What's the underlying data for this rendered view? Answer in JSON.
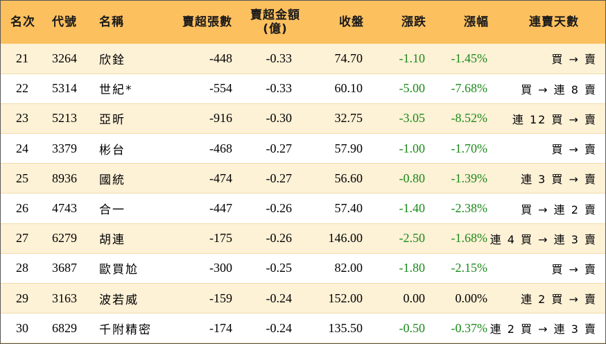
{
  "headers": {
    "rank": "名次",
    "code": "代號",
    "name": "名稱",
    "sell_lots": "賣超張數",
    "sell_amount_line1": "賣超金額",
    "sell_amount_line2": "(億)",
    "close": "收盤",
    "change": "漲跌",
    "change_pct": "漲幅",
    "streak": "連賣天數"
  },
  "rows": [
    {
      "rank": "21",
      "code": "3264",
      "name": "欣銓",
      "sell_lots": "-448",
      "sell_amount": "-0.33",
      "close": "74.70",
      "change": "-1.10",
      "change_pct": "-1.45%",
      "streak": "買 → 賣"
    },
    {
      "rank": "22",
      "code": "5314",
      "name": "世紀*",
      "sell_lots": "-554",
      "sell_amount": "-0.33",
      "close": "60.10",
      "change": "-5.00",
      "change_pct": "-7.68%",
      "streak": "買 → 連 8 賣"
    },
    {
      "rank": "23",
      "code": "5213",
      "name": "亞昕",
      "sell_lots": "-916",
      "sell_amount": "-0.30",
      "close": "32.75",
      "change": "-3.05",
      "change_pct": "-8.52%",
      "streak": "連 12 買 → 賣"
    },
    {
      "rank": "24",
      "code": "3379",
      "name": "彬台",
      "sell_lots": "-468",
      "sell_amount": "-0.27",
      "close": "57.90",
      "change": "-1.00",
      "change_pct": "-1.70%",
      "streak": "買 → 賣"
    },
    {
      "rank": "25",
      "code": "8936",
      "name": "國統",
      "sell_lots": "-474",
      "sell_amount": "-0.27",
      "close": "56.60",
      "change": "-0.80",
      "change_pct": "-1.39%",
      "streak": "連 3 買 → 賣"
    },
    {
      "rank": "26",
      "code": "4743",
      "name": "合一",
      "sell_lots": "-447",
      "sell_amount": "-0.26",
      "close": "57.40",
      "change": "-1.40",
      "change_pct": "-2.38%",
      "streak": "買 → 連 2 賣"
    },
    {
      "rank": "27",
      "code": "6279",
      "name": "胡連",
      "sell_lots": "-175",
      "sell_amount": "-0.26",
      "close": "146.00",
      "change": "-2.50",
      "change_pct": "-1.68%",
      "streak": "連 4 買 → 連 3 賣"
    },
    {
      "rank": "28",
      "code": "3687",
      "name": "歐買尬",
      "sell_lots": "-300",
      "sell_amount": "-0.25",
      "close": "82.00",
      "change": "-1.80",
      "change_pct": "-2.15%",
      "streak": "買 → 賣"
    },
    {
      "rank": "29",
      "code": "3163",
      "name": "波若威",
      "sell_lots": "-159",
      "sell_amount": "-0.24",
      "close": "152.00",
      "change": "0.00",
      "change_pct": "0.00%",
      "streak": "連 2 買 → 賣"
    },
    {
      "rank": "30",
      "code": "6829",
      "name": "千附精密",
      "sell_lots": "-174",
      "sell_amount": "-0.24",
      "close": "135.50",
      "change": "-0.50",
      "change_pct": "-0.37%",
      "streak": "連 2 買 → 連 3 賣"
    }
  ],
  "colors": {
    "header_bg": "#fdc05f",
    "row_alt_bg": "#fdf1d6",
    "negative_change": "#1a8a1a"
  }
}
